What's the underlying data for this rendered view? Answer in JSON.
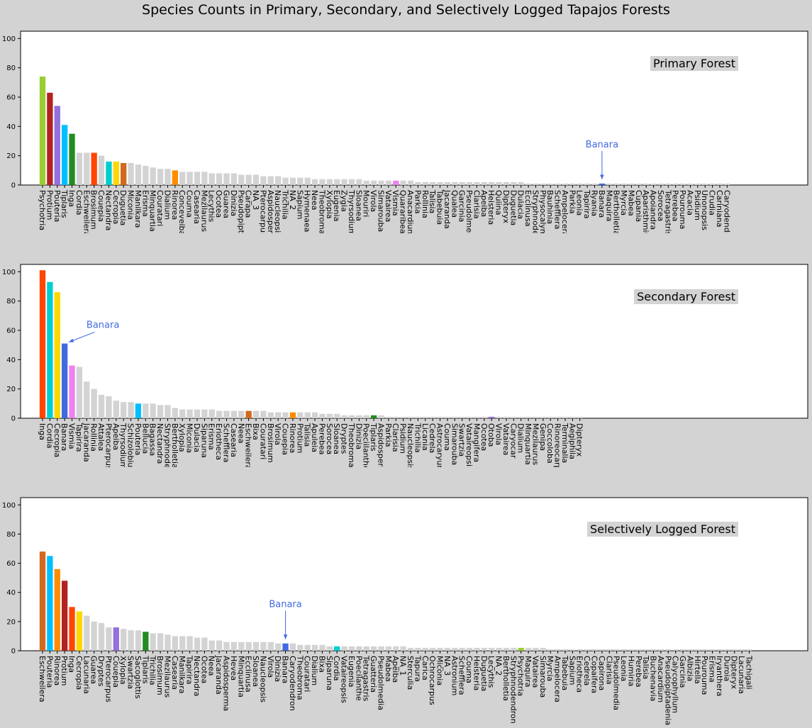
{
  "title": "Species Counts in Primary, Secondary, and Selectively Logged Tapajos Forests",
  "colors": {
    "figure_bg": "#d3d3d3",
    "axes_bg": "#ffffff",
    "default_bar": "#d3d3d3",
    "annotation": "#4169e1"
  },
  "chart_data": [
    {
      "type": "bar",
      "panel_label": "Primary Forest",
      "ylim": [
        0,
        105
      ],
      "yticks": [
        0,
        20,
        40,
        60,
        80,
        100
      ],
      "grid": false,
      "categories": [
        "Psychotria",
        "Protium",
        "Pouteria",
        "Tiplaris",
        "Inga",
        "Cordia",
        "Eschweilera",
        "Brosimum",
        "Couepia",
        "Nectandra",
        "Cecropia",
        "Duguetia",
        "Miconia",
        "Manilkara",
        "Erisma",
        "Minquartia",
        "Couratari",
        "Dialium",
        "Rinorea",
        "Conceveiba",
        "Couma",
        "Casearia",
        "Mezilaurus",
        "Lecythis",
        "Ocotea",
        "Guarea",
        "Dinizia",
        "Pseudopiptadenia",
        "Carapa",
        "NA_3",
        "Pterocarpus",
        "Aspidosperma",
        "Naucleopsis",
        "Trichilia",
        "NA_2",
        "Sapium",
        "Hymenaea",
        "Neea",
        "Theobroma",
        "Xylopia",
        "Eugenia",
        "Zygia",
        "Thyrsodium",
        "Sloanea",
        "Mouriri",
        "Virola",
        "Simarouba",
        "Vatairea",
        "Vismia",
        "Quararibea",
        "Anacardium",
        "Parkia",
        "Rollinia",
        "Talisia",
        "Tabebuia",
        "Jacaranda",
        "Qualea",
        "Garcinia",
        "Pseudolmedia",
        "Clarisia",
        "Apeiba",
        "Heisteria",
        "Quiina",
        "Dipteryx",
        "Duguetia",
        "Dulacia",
        "Ecclinusa",
        "Stryphnodendron",
        "Physocalymma",
        "Bauhinia",
        "Schefflera",
        "Ampelocera",
        "Parkia",
        "Leonia",
        "Tapirira",
        "Ryania",
        "Banara",
        "Maquira",
        "Bertholletia",
        "Myrcia",
        "Mabea",
        "Cupania",
        "Aparisthmium",
        "Apoiandra",
        "Sorocea",
        "Tetragastris",
        "Perebea",
        "Pourouma",
        "Acacia",
        "Psidium",
        "Unonopsis",
        "Crudia",
        "Cariniana",
        "Caryodendron"
      ],
      "values": [
        74,
        63,
        54,
        41,
        35,
        22,
        22,
        22,
        20,
        16,
        16,
        15,
        15,
        14,
        13,
        12,
        11,
        11,
        10,
        9,
        9,
        9,
        9,
        8,
        8,
        8,
        8,
        7,
        7,
        7,
        6,
        6,
        6,
        5,
        5,
        5,
        5,
        4,
        4,
        4,
        4,
        4,
        4,
        4,
        3,
        3,
        3,
        3,
        3,
        3,
        3,
        2,
        2,
        2,
        2,
        2,
        2,
        2,
        2,
        2,
        2,
        2,
        2,
        2,
        2,
        2,
        1,
        1,
        1,
        1,
        1,
        1,
        1,
        1,
        1,
        1,
        1,
        1,
        1,
        1,
        1,
        1,
        1,
        1,
        1,
        1,
        1,
        1,
        1,
        1,
        1,
        1,
        1,
        1
      ],
      "highlight_colors": {
        "0": "#9acd32",
        "1": "#b22222",
        "2": "#9370db",
        "3": "#00bfff",
        "4": "#228b22",
        "7": "#ff4500",
        "9": "#00ced1",
        "10": "#ffd700",
        "11": "#d2691e",
        "18": "#ff8c00",
        "48": "#ee82ee",
        "76": "#4169e1"
      },
      "annotation": {
        "text": "Banara",
        "index": 76
      }
    },
    {
      "type": "bar",
      "panel_label": "Secondary Forest",
      "ylim": [
        0,
        105
      ],
      "yticks": [
        0,
        20,
        40,
        60,
        80,
        100
      ],
      "grid": false,
      "categories": [
        "Inga",
        "Cordia",
        "Cecropia",
        "Banara",
        "Vismia",
        "Tapirira",
        "Jacaranda",
        "Rollinia",
        "Attalea",
        "Pterocarpus",
        "Apeiba",
        "Thyrsodium",
        "Schizolobium",
        "Pouteria",
        "Bellucia",
        "Bagassa",
        "Nectandra",
        "Stryphnodendron",
        "Bertholletia",
        "Xylopia",
        "Miconia",
        "Dulacia",
        "Siparuna",
        "Erisma",
        "Eriotheca",
        "Schefflera",
        "Casearia",
        "Neea",
        "Eschweilera",
        "Bixa",
        "Couratari",
        "Brosimum",
        "Virola",
        "Couepia",
        "Rinorea",
        "Protium",
        "Talisia",
        "Apuleia",
        "Perebea",
        "Sorocea",
        "Sloanea",
        "Dryptes",
        "Theobroma",
        "Dinizia",
        "Poeciilanthe",
        "Tiplaris",
        "Aspidosperma",
        "Parkia",
        "Clarisia",
        "Psidium",
        "Naucleopsis",
        "Trichilia",
        "Licania",
        "Cedrela",
        "Astrocaryum",
        "Couma",
        "Simarouba",
        "Swartzia",
        "Vataireopsis",
        "Mangifera",
        "Ocotea",
        "Otoba",
        "Virola",
        "Vatairea",
        "Caryocar",
        "Dialium",
        "Minquartia",
        "Mezilaurus",
        "Genipa",
        "Coccoloba",
        "Rinoreocarpus",
        "Terminalia",
        "Aegiphila",
        "Dipteryx"
      ],
      "values": [
        101,
        93,
        86,
        51,
        36,
        35,
        25,
        20,
        16,
        15,
        12,
        11,
        11,
        10,
        10,
        10,
        9,
        9,
        7,
        6,
        6,
        6,
        6,
        6,
        5,
        5,
        5,
        5,
        5,
        5,
        5,
        4,
        4,
        4,
        4,
        4,
        4,
        4,
        3,
        3,
        3,
        2,
        2,
        2,
        2,
        2,
        2,
        1,
        1,
        1,
        1,
        1,
        1,
        1,
        1,
        1,
        1,
        1,
        1,
        1,
        1,
        1,
        1,
        1,
        1,
        1,
        1,
        1,
        1,
        1,
        1,
        1,
        1,
        1
      ],
      "highlight_colors": {
        "0": "#ff4500",
        "1": "#00ced1",
        "2": "#ffd700",
        "3": "#4169e1",
        "4": "#ee82ee",
        "13": "#00bfff",
        "28": "#d2691e",
        "34": "#ff8c00",
        "45": "#228b22",
        "61": "#9370db"
      },
      "annotation": {
        "text": "Banara",
        "index": 3
      }
    },
    {
      "type": "bar",
      "panel_label": "Selectively Logged Forest",
      "ylim": [
        0,
        105
      ],
      "yticks": [
        0,
        20,
        40,
        60,
        80,
        100
      ],
      "grid": false,
      "categories": [
        "Eschweilera",
        "Pouteria",
        "Rinorea",
        "Protium",
        "Inga",
        "Cecropia",
        "Lacunaria",
        "Guarea",
        "Dryptes",
        "Pterocarpus",
        "Couepia",
        "Xylopia",
        "Swartzia",
        "Sacoglottis",
        "Tiplaris",
        "Trichilia",
        "Brosimum",
        "Mezilaurus",
        "Casearia",
        "Manilkara",
        "Tapirira",
        "Nectandra",
        "Ocotea",
        "Neea",
        "Jacaranda",
        "Aspidosperma",
        "Hevea",
        "Minquartia",
        "Ecclinusa",
        "Sloanea",
        "Naucleopsis",
        "Virola",
        "Dinizia",
        "Banara",
        "Caryodendron",
        "Theobroma",
        "Couratari",
        "Dialium",
        "Bixa",
        "Siparuna",
        "Cordia",
        "Vataireopsis",
        "Eugenia",
        "Poecilanthe",
        "Tetragastris",
        "Guatteria",
        "Pseudolmedia",
        "Mabea",
        "Apeiba",
        "NA_1",
        "Sterculia",
        "Tapura",
        "Carica",
        "Ochrocarpus",
        "Miconia",
        "NA_3",
        "Astronium",
        "Schefflera",
        "Couma",
        "Heisteria",
        "Duguetia",
        "Lecythis",
        "NA_2",
        "Bertholletia",
        "Stryphnodendron",
        "Psychotria",
        "Maquira",
        "Vatairea",
        "Simarouba",
        "Myrcia",
        "Ampelocera",
        "Tabebuia",
        "Sapium",
        "Eriotheca",
        "Cedrela",
        "Copaifera",
        "Capirona",
        "Clarisia",
        "Pseudolmedia",
        "Leonia",
        "Humiria",
        "Perebea",
        "Talisia",
        "Buchenavia",
        "Anacardium",
        "Pseudopiptadenia",
        "Calycophyllum",
        "Garcinia",
        "Albizia",
        "Hirtella",
        "Pourouma",
        "Erisma",
        "Iryanthera",
        "Duroia",
        "Dipteryx",
        "Lacunaria",
        "Tachigali"
      ],
      "values": [
        68,
        65,
        56,
        48,
        30,
        27,
        24,
        20,
        19,
        16,
        16,
        15,
        14,
        14,
        13,
        12,
        12,
        11,
        10,
        10,
        10,
        9,
        9,
        7,
        7,
        6,
        6,
        6,
        6,
        6,
        6,
        6,
        5,
        5,
        5,
        4,
        4,
        4,
        4,
        3,
        3,
        3,
        3,
        3,
        3,
        3,
        3,
        3,
        3,
        3,
        2,
        2,
        2,
        2,
        2,
        2,
        2,
        2,
        2,
        2,
        2,
        2,
        2,
        2,
        2,
        2,
        2,
        2,
        2,
        1,
        1,
        1,
        1,
        1,
        1,
        1,
        1,
        1,
        1,
        1,
        1,
        1,
        1,
        1,
        1,
        1,
        1,
        1,
        1,
        1,
        1,
        1,
        1,
        1,
        1,
        1,
        1
      ],
      "highlight_colors": {
        "0": "#d2691e",
        "1": "#00bfff",
        "2": "#ff8c00",
        "3": "#b22222",
        "4": "#ff4500",
        "5": "#ffd700",
        "10": "#9370db",
        "14": "#228b22",
        "33": "#4169e1",
        "40": "#00ced1",
        "65": "#9acd32"
      },
      "annotation": {
        "text": "Banara",
        "index": 33
      }
    }
  ]
}
